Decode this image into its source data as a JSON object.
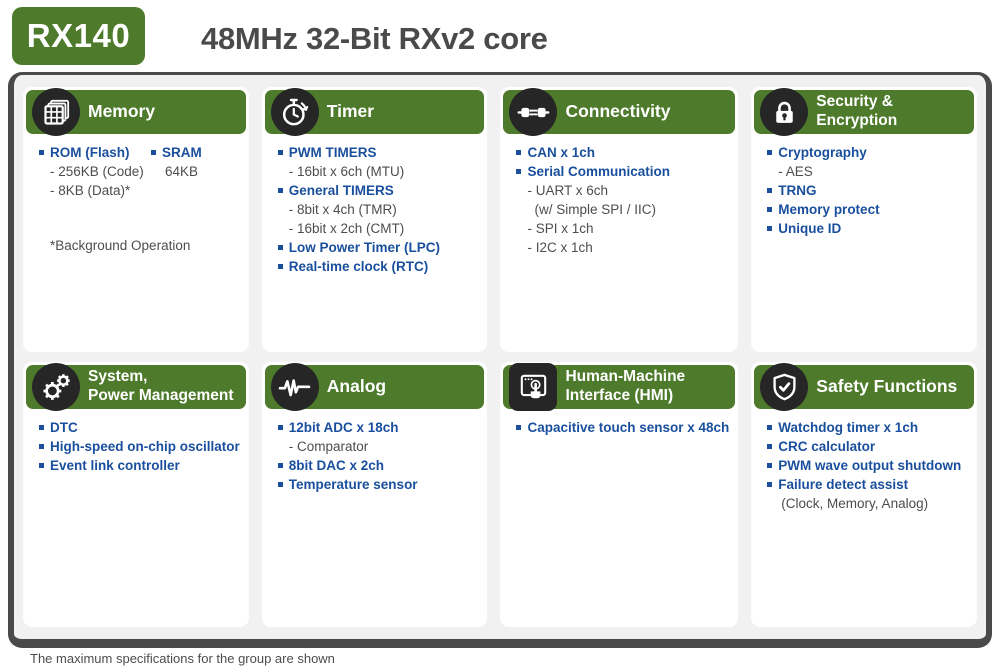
{
  "header": {
    "badge": "RX140",
    "title": "48MHz 32-Bit RXv2 core"
  },
  "footer": {
    "note": "The maximum specifications for the group are shown"
  },
  "colors": {
    "green": "#4E7A2B",
    "dark_badge": "#262626",
    "blue": "#1A4F9D",
    "text_gray": "#4D4D4D",
    "panel_fill": "#F1F1F1",
    "panel_border": "#4A4A4A"
  },
  "cards": [
    {
      "icon": "memory-icon",
      "title": "Memory",
      "columns": [
        [
          {
            "level": "b",
            "text": "ROM (Flash)"
          },
          {
            "level": "s",
            "text": "- 256KB (Code)"
          },
          {
            "level": "s",
            "text": "- 8KB (Data)*"
          }
        ],
        [
          {
            "level": "b",
            "text": "SRAM"
          },
          {
            "level": "p",
            "text": "64KB"
          }
        ]
      ],
      "note": "*Background Operation"
    },
    {
      "icon": "timer-icon",
      "title": "Timer",
      "items": [
        {
          "level": "b",
          "text": "PWM TIMERS"
        },
        {
          "level": "s",
          "text": "- 16bit x 6ch (MTU)"
        },
        {
          "level": "b",
          "text": "General TIMERS"
        },
        {
          "level": "s",
          "text": "- 8bit x 4ch (TMR)"
        },
        {
          "level": "s",
          "text": "- 16bit x 2ch (CMT)"
        },
        {
          "level": "b",
          "text": "Low Power Timer (LPC)"
        },
        {
          "level": "b",
          "text": "Real-time clock (RTC)"
        }
      ]
    },
    {
      "icon": "connectivity-icon",
      "title": "Connectivity",
      "items": [
        {
          "level": "b",
          "text": "CAN x 1ch"
        },
        {
          "level": "b",
          "text": "Serial Communication"
        },
        {
          "level": "s",
          "text": "- UART x 6ch"
        },
        {
          "level": "s2",
          "text": "(w/ Simple SPI / IIC)"
        },
        {
          "level": "s",
          "text": "- SPI x 1ch"
        },
        {
          "level": "s",
          "text": "- I2C x 1ch"
        }
      ]
    },
    {
      "icon": "lock-icon",
      "title": "Security &\nEncryption",
      "items": [
        {
          "level": "b",
          "text": "Cryptography"
        },
        {
          "level": "s",
          "text": "- AES"
        },
        {
          "level": "b",
          "text": "TRNG"
        },
        {
          "level": "b",
          "text": "Memory protect"
        },
        {
          "level": "b",
          "text": "Unique ID"
        }
      ]
    },
    {
      "icon": "gears-icon",
      "title": "System,\nPower Management",
      "items": [
        {
          "level": "b",
          "text": "DTC"
        },
        {
          "level": "b",
          "text": "High-speed on-chip oscillator"
        },
        {
          "level": "b",
          "text": "Event link controller"
        }
      ]
    },
    {
      "icon": "analog-icon",
      "title": "Analog",
      "items": [
        {
          "level": "b",
          "text": "12bit  ADC x 18ch"
        },
        {
          "level": "s",
          "text": "- Comparator"
        },
        {
          "level": "b",
          "text": "8bit DAC x 2ch"
        },
        {
          "level": "b",
          "text": "Temperature sensor"
        }
      ]
    },
    {
      "icon": "hmi-touch-icon",
      "title": "Human-Machine\nInterface (HMI)",
      "items": [
        {
          "level": "b",
          "text": "Capacitive touch sensor x 48ch"
        }
      ]
    },
    {
      "icon": "shield-icon",
      "title": "Safety Functions",
      "items": [
        {
          "level": "b",
          "text": "Watchdog timer x 1ch"
        },
        {
          "level": "b",
          "text": "CRC calculator"
        },
        {
          "level": "b",
          "text": "PWM wave output shutdown"
        },
        {
          "level": "b",
          "text": "Failure detect assist"
        },
        {
          "level": "p",
          "text": "(Clock, Memory, Analog)"
        }
      ]
    }
  ]
}
